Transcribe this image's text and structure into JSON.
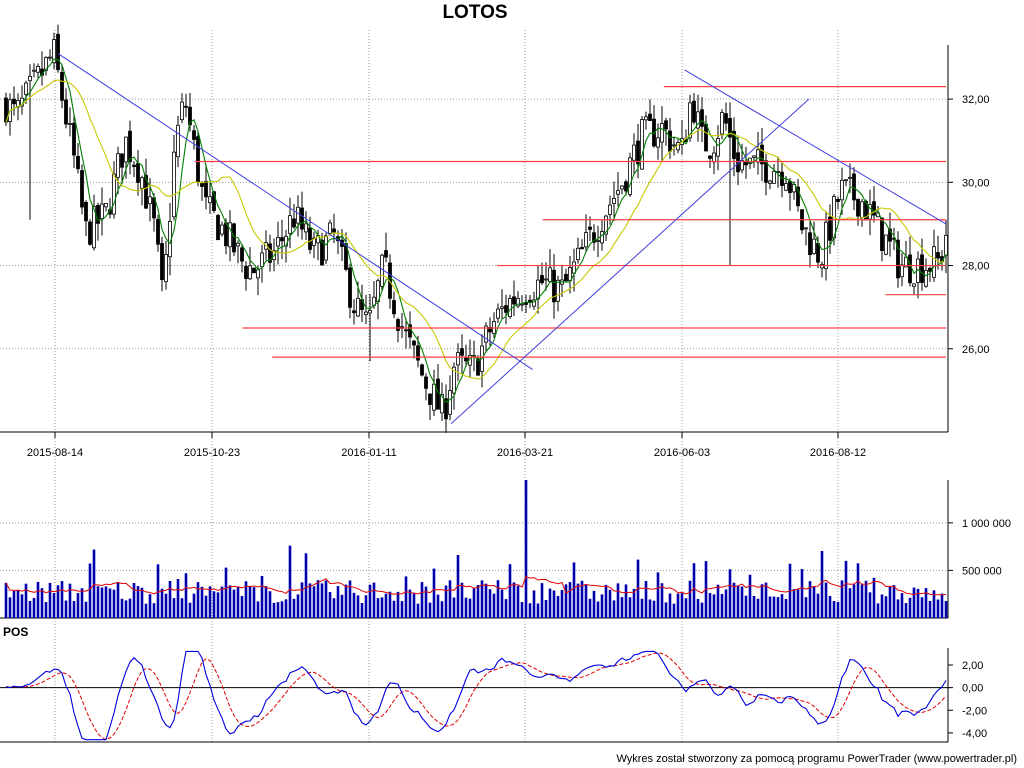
{
  "chart_data": [
    {
      "panel": "price",
      "type": "candlestick",
      "title": "LOTOS",
      "x_ticks": [
        "2015-08-14",
        "2015-10-23",
        "2016-01-11",
        "2016-03-21",
        "2016-06-03",
        "2016-08-12"
      ],
      "y_ticks": [
        "26,00",
        "28,00",
        "30,00",
        "32,00"
      ],
      "ylim": [
        24.0,
        33.3
      ],
      "grid": true,
      "series": [
        {
          "kind": "candles",
          "color": "#000000",
          "anchors": [
            [
              0,
              31.9
            ],
            [
              10,
              31.6
            ],
            [
              25,
              32.2
            ],
            [
              48,
              33.1
            ],
            [
              60,
              31.6
            ],
            [
              68,
              30.6
            ],
            [
              80,
              28.8
            ],
            [
              100,
              29.2
            ],
            [
              120,
              31.0
            ],
            [
              135,
              30.3
            ],
            [
              150,
              28.8
            ],
            [
              158,
              27.1
            ],
            [
              170,
              30.9
            ],
            [
              180,
              32.0
            ],
            [
              200,
              29.4
            ],
            [
              220,
              28.8
            ],
            [
              240,
              28.0
            ],
            [
              250,
              27.9
            ],
            [
              270,
              28.3
            ],
            [
              290,
              29.2
            ],
            [
              310,
              28.3
            ],
            [
              330,
              28.7
            ],
            [
              350,
              27.1
            ],
            [
              365,
              26.5
            ],
            [
              380,
              28.0
            ],
            [
              400,
              26.4
            ],
            [
              420,
              25.3
            ],
            [
              440,
              24.4
            ],
            [
              450,
              25.6
            ],
            [
              470,
              25.5
            ],
            [
              490,
              26.6
            ],
            [
              505,
              27.1
            ],
            [
              520,
              27.4
            ],
            [
              540,
              27.6
            ],
            [
              560,
              27.4
            ],
            [
              580,
              28.3
            ],
            [
              600,
              29.2
            ],
            [
              620,
              30.0
            ],
            [
              640,
              31.1
            ],
            [
              660,
              31.3
            ],
            [
              680,
              30.7
            ],
            [
              690,
              32.1
            ],
            [
              700,
              31.0
            ],
            [
              710,
              30.9
            ],
            [
              722,
              31.6
            ],
            [
              735,
              30.5
            ],
            [
              750,
              30.4
            ],
            [
              770,
              30.4
            ],
            [
              785,
              30.3
            ],
            [
              800,
              29.0
            ],
            [
              820,
              28.2
            ],
            [
              840,
              29.8
            ],
            [
              860,
              29.6
            ],
            [
              880,
              28.8
            ],
            [
              900,
              28.0
            ],
            [
              920,
              28.0
            ],
            [
              940,
              28.1
            ],
            [
              946,
              28.8
            ]
          ]
        },
        {
          "kind": "moving-average",
          "color": "#008000"
        },
        {
          "kind": "moving-average",
          "color": "#c8c800"
        },
        {
          "kind": "trendline",
          "color": "#4040e0",
          "from": [
            "2015-08-14",
            33.1
          ],
          "to": [
            "2016-03-21",
            25.5
          ]
        },
        {
          "kind": "trendline",
          "color": "#4040e0",
          "from": [
            "2016-02-20",
            24.2
          ],
          "to": [
            "2016-08-01",
            32.0
          ]
        },
        {
          "kind": "trendline",
          "color": "#4040e0",
          "from": [
            "2016-06-03",
            32.7
          ],
          "to": [
            "2016-09-20",
            29.0
          ]
        },
        {
          "kind": "support-resistance",
          "color": "#ff4040",
          "levels": [
            32.3,
            30.5,
            29.1,
            28.0,
            27.3,
            26.5,
            25.8
          ]
        }
      ]
    },
    {
      "panel": "volume",
      "type": "bar",
      "y_ticks": [
        "500 000",
        "1 000 000"
      ],
      "ylim": [
        0,
        1450000
      ],
      "series": [
        {
          "kind": "bars",
          "color": "#0000b0"
        },
        {
          "kind": "average",
          "color": "#e00000"
        }
      ],
      "peak": {
        "date": "2016-03-21",
        "value": 1450000
      }
    },
    {
      "panel": "oscillator",
      "type": "line",
      "label": "POS",
      "y_ticks": [
        "2,00",
        "0,00",
        "-2,00",
        "-4,00"
      ],
      "ylim": [
        -4.8,
        3.5
      ],
      "series": [
        {
          "kind": "line",
          "color": "#0000e0"
        },
        {
          "kind": "signal",
          "color": "#e00000",
          "style": "dashed"
        }
      ]
    }
  ],
  "footer": "Wykres został stworzony za pomocą programu PowerTrader (www.powertrader.pl)"
}
